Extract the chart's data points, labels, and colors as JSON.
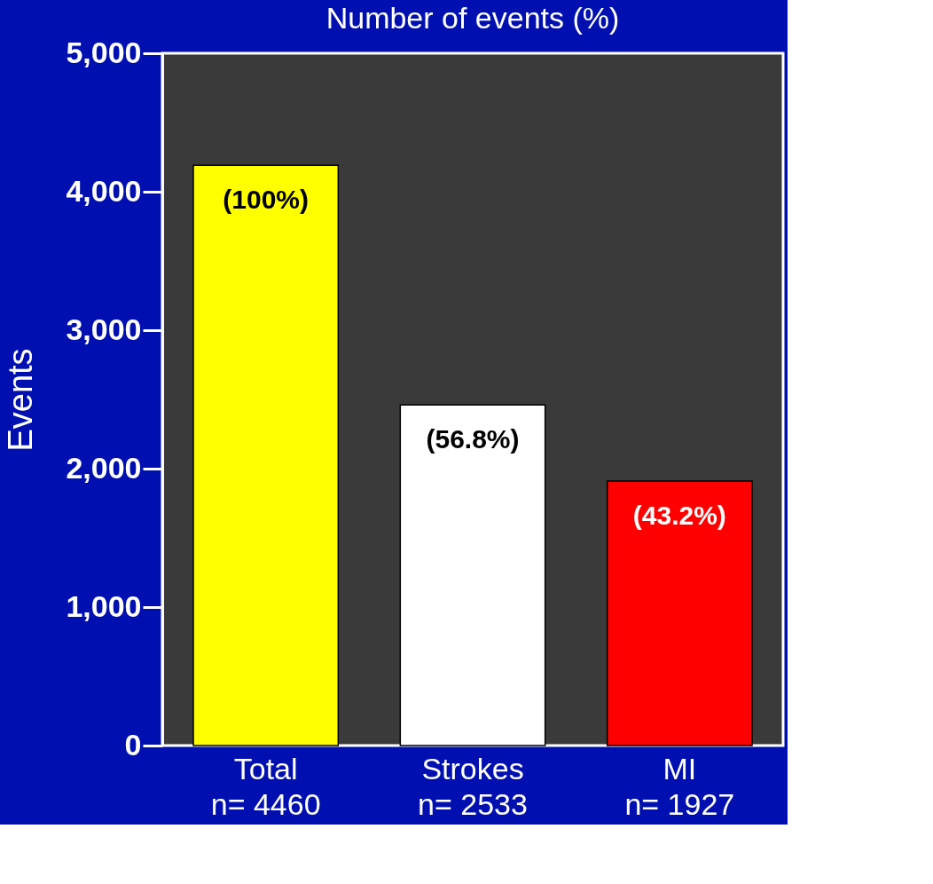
{
  "chart_data": {
    "type": "bar",
    "title": "Number of events (%)",
    "ylabel": "Events",
    "categories": [
      "Total\nn= 4460",
      "Strokes\nn= 2533",
      "MI\nn= 1927"
    ],
    "values": [
      4190,
      2460,
      1910
    ],
    "colors": [
      "#ffff00",
      "#ffffff",
      "#ff0000"
    ],
    "annotations": [
      {
        "text": "(100%)",
        "x": "Total\nn= 4460",
        "y": 4190
      },
      {
        "text": "(56.8%)",
        "x": "Strokes\nn= 2533",
        "y": 2460
      },
      {
        "text": "(43.2%)",
        "x": "MI\nn= 1927",
        "y": 1910
      }
    ],
    "ylim": [
      0,
      5000
    ],
    "yticks": [
      {
        "value": 0,
        "label": "0"
      },
      {
        "value": 1000,
        "label": "1,000"
      },
      {
        "value": 2000,
        "label": "2,000"
      },
      {
        "value": 3000,
        "label": "3,000"
      },
      {
        "value": 4000,
        "label": "4,000"
      },
      {
        "value": 5000,
        "label": "5,000"
      }
    ],
    "grid": false
  }
}
